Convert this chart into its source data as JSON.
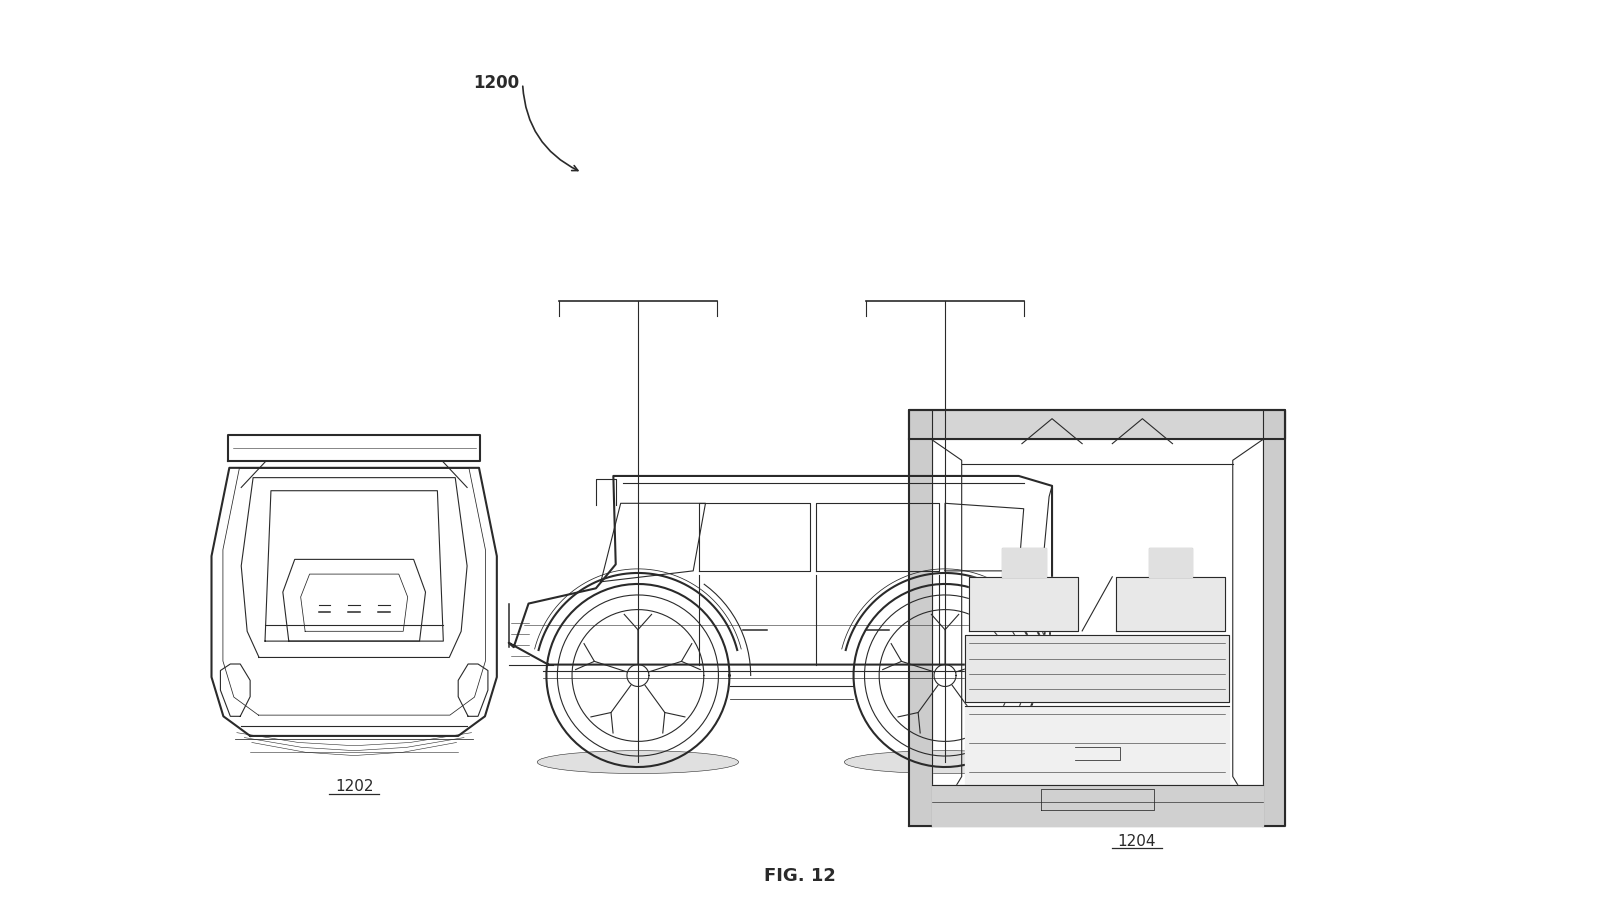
{
  "bg_color": "#ffffff",
  "line_color": "#2a2a2a",
  "label_1200": "1200",
  "label_1202": "1202",
  "label_1204": "1204",
  "fig_label": "FIG. 12",
  "title_fontsize": 12,
  "label_fontsize": 11,
  "fig_label_fontsize": 13,
  "figsize": [
    16,
    9
  ]
}
